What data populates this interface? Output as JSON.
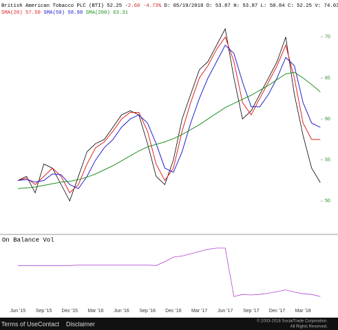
{
  "chart_data": [
    {
      "type": "line",
      "title": "British American Tobacco PLC (BTI) 52.25",
      "change": "-2.60 -4.73%",
      "quote": "D: 05/19/2018 O: 53.87 H: 53.87 L: 50.84 C: 52.25 V: 74.03",
      "categories": [
        "Jun '15",
        null,
        null,
        "Sep '15",
        null,
        null,
        "Dec '15",
        null,
        null,
        "Mar '16",
        null,
        null,
        "Jun '16",
        null,
        null,
        "Sep '16",
        null,
        null,
        "Dec '16",
        null,
        null,
        "Mar '17",
        null,
        null,
        "Jun '17",
        null,
        null,
        "Sep '17",
        null,
        null,
        "Dec '17",
        null,
        null,
        "Mar '18",
        null,
        null
      ],
      "series": [
        {
          "color": "#000000",
          "values": [
            52.5,
            53,
            51,
            54.5,
            54,
            52,
            50,
            53,
            56,
            57,
            57.5,
            59,
            60.5,
            61,
            60.5,
            57,
            53,
            52,
            55,
            60,
            63,
            66,
            67,
            69,
            71,
            65,
            60,
            61,
            63,
            65,
            67,
            70,
            63,
            58,
            54,
            52.25
          ]
        },
        {
          "name": "SMA(20)",
          "last_label": "57.50",
          "color": "#e02020",
          "values": [
            52.5,
            52.8,
            52,
            53,
            54,
            53,
            51,
            52,
            54.5,
            56.5,
            57.2,
            58.5,
            60,
            60.8,
            60.8,
            58.5,
            54.5,
            52.5,
            54,
            58.5,
            62,
            65,
            66.5,
            68.5,
            70,
            67,
            62,
            60.5,
            62.5,
            64.5,
            66.5,
            69,
            65,
            59.5,
            57.5,
            57.5
          ]
        },
        {
          "name": "SMA(50)",
          "last_label": "58.98",
          "color": "#2020d0",
          "values": [
            52.5,
            52.6,
            52.3,
            52.5,
            53.3,
            53.2,
            52,
            51.5,
            53,
            55,
            56.5,
            57.5,
            59,
            60,
            60.5,
            59.5,
            57,
            54,
            53.5,
            56,
            59.5,
            62.5,
            65,
            67,
            69,
            68,
            64.5,
            61.5,
            61.5,
            63,
            65,
            67.5,
            66.5,
            62,
            59.5,
            58.98
          ]
        },
        {
          "name": "SMA(200)",
          "last_label": "63.31",
          "color": "#209020",
          "values": [
            51.5,
            51.6,
            51.7,
            51.9,
            52.1,
            52.3,
            52.4,
            52.6,
            52.9,
            53.3,
            53.8,
            54.3,
            54.9,
            55.5,
            56.1,
            56.6,
            56.9,
            57.2,
            57.6,
            58.1,
            58.7,
            59.3,
            60,
            60.7,
            61.4,
            61.9,
            62.4,
            62.9,
            63.5,
            64.1,
            64.8,
            65.5,
            65.7,
            65,
            64.2,
            63.31
          ]
        }
      ],
      "ylim": [
        46,
        72.5
      ],
      "yticks": [
        50,
        55,
        60,
        65,
        70
      ],
      "ytick_color": "#2a8a2a"
    },
    {
      "type": "line",
      "title": "On Balance Vol",
      "categories": [
        "Jun '15",
        null,
        null,
        "Sep '15",
        null,
        null,
        "Dec '15",
        null,
        null,
        "Mar '16",
        null,
        null,
        "Jun '16",
        null,
        null,
        "Sep '16",
        null,
        null,
        "Dec '16",
        null,
        null,
        "Mar '17",
        null,
        null,
        "Jun '17",
        null,
        null,
        "Sep '17",
        null,
        null,
        "Dec '17",
        null,
        null,
        "Mar '18",
        null,
        null
      ],
      "series": [
        {
          "color": "#b040d0",
          "values": [
            63,
            63,
            63,
            63,
            63,
            63,
            63,
            64,
            64,
            64,
            64,
            64,
            64,
            64,
            64,
            64,
            63,
            70,
            78,
            80,
            84,
            88,
            92,
            94,
            94,
            8,
            12,
            11,
            12,
            14,
            17,
            20,
            16,
            13,
            12,
            8
          ]
        }
      ],
      "ylim": [
        0,
        100
      ]
    }
  ],
  "footer": {
    "links": [
      "Terms of Use",
      "Contact",
      "Disclaimer"
    ],
    "copyright": [
      "© 2003-2018 SocialTrade Corporation.",
      "All Rights Reserved."
    ]
  }
}
